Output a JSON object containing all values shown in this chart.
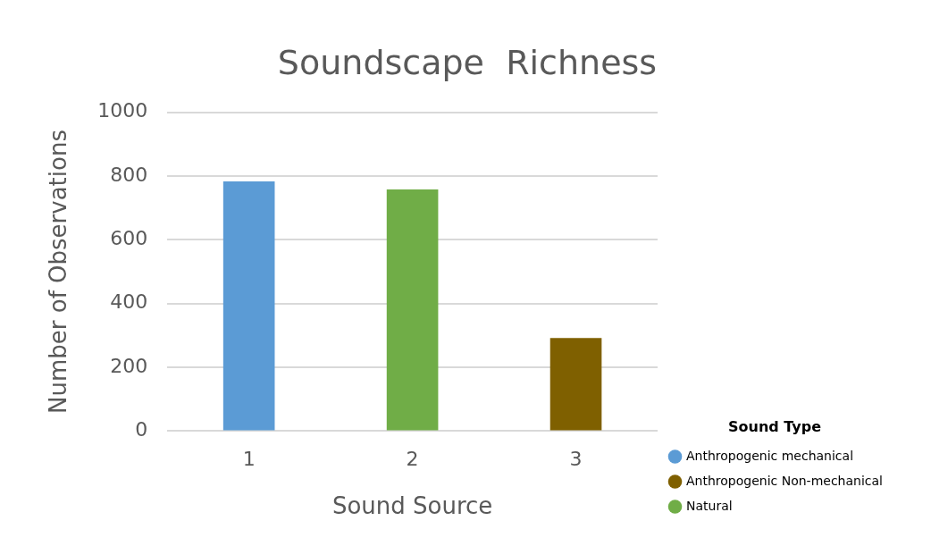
{
  "chart_data": {
    "type": "bar",
    "title": "Soundscape  Richness",
    "xlabel": "Sound Source",
    "ylabel": "Number of Observations",
    "legend_title": "Sound Type",
    "legend": "bottom right",
    "categories": [
      "1",
      "2",
      "3"
    ],
    "stacked": true,
    "series": [
      {
        "name": "Anthropogenic mechanical",
        "color": "#5b9bd5",
        "values": [
          783,
          null,
          null
        ]
      },
      {
        "name": "Anthropogenic Non-mechanical",
        "color": "#7f6000",
        "values": [
          null,
          null,
          292
        ]
      },
      {
        "name": "Natural",
        "color": "#70ad47",
        "values": [
          null,
          758,
          null
        ]
      }
    ],
    "ylim": [
      0,
      1000
    ],
    "yticks": [
      0,
      200,
      400,
      600,
      800,
      1000
    ],
    "grid": "y"
  }
}
